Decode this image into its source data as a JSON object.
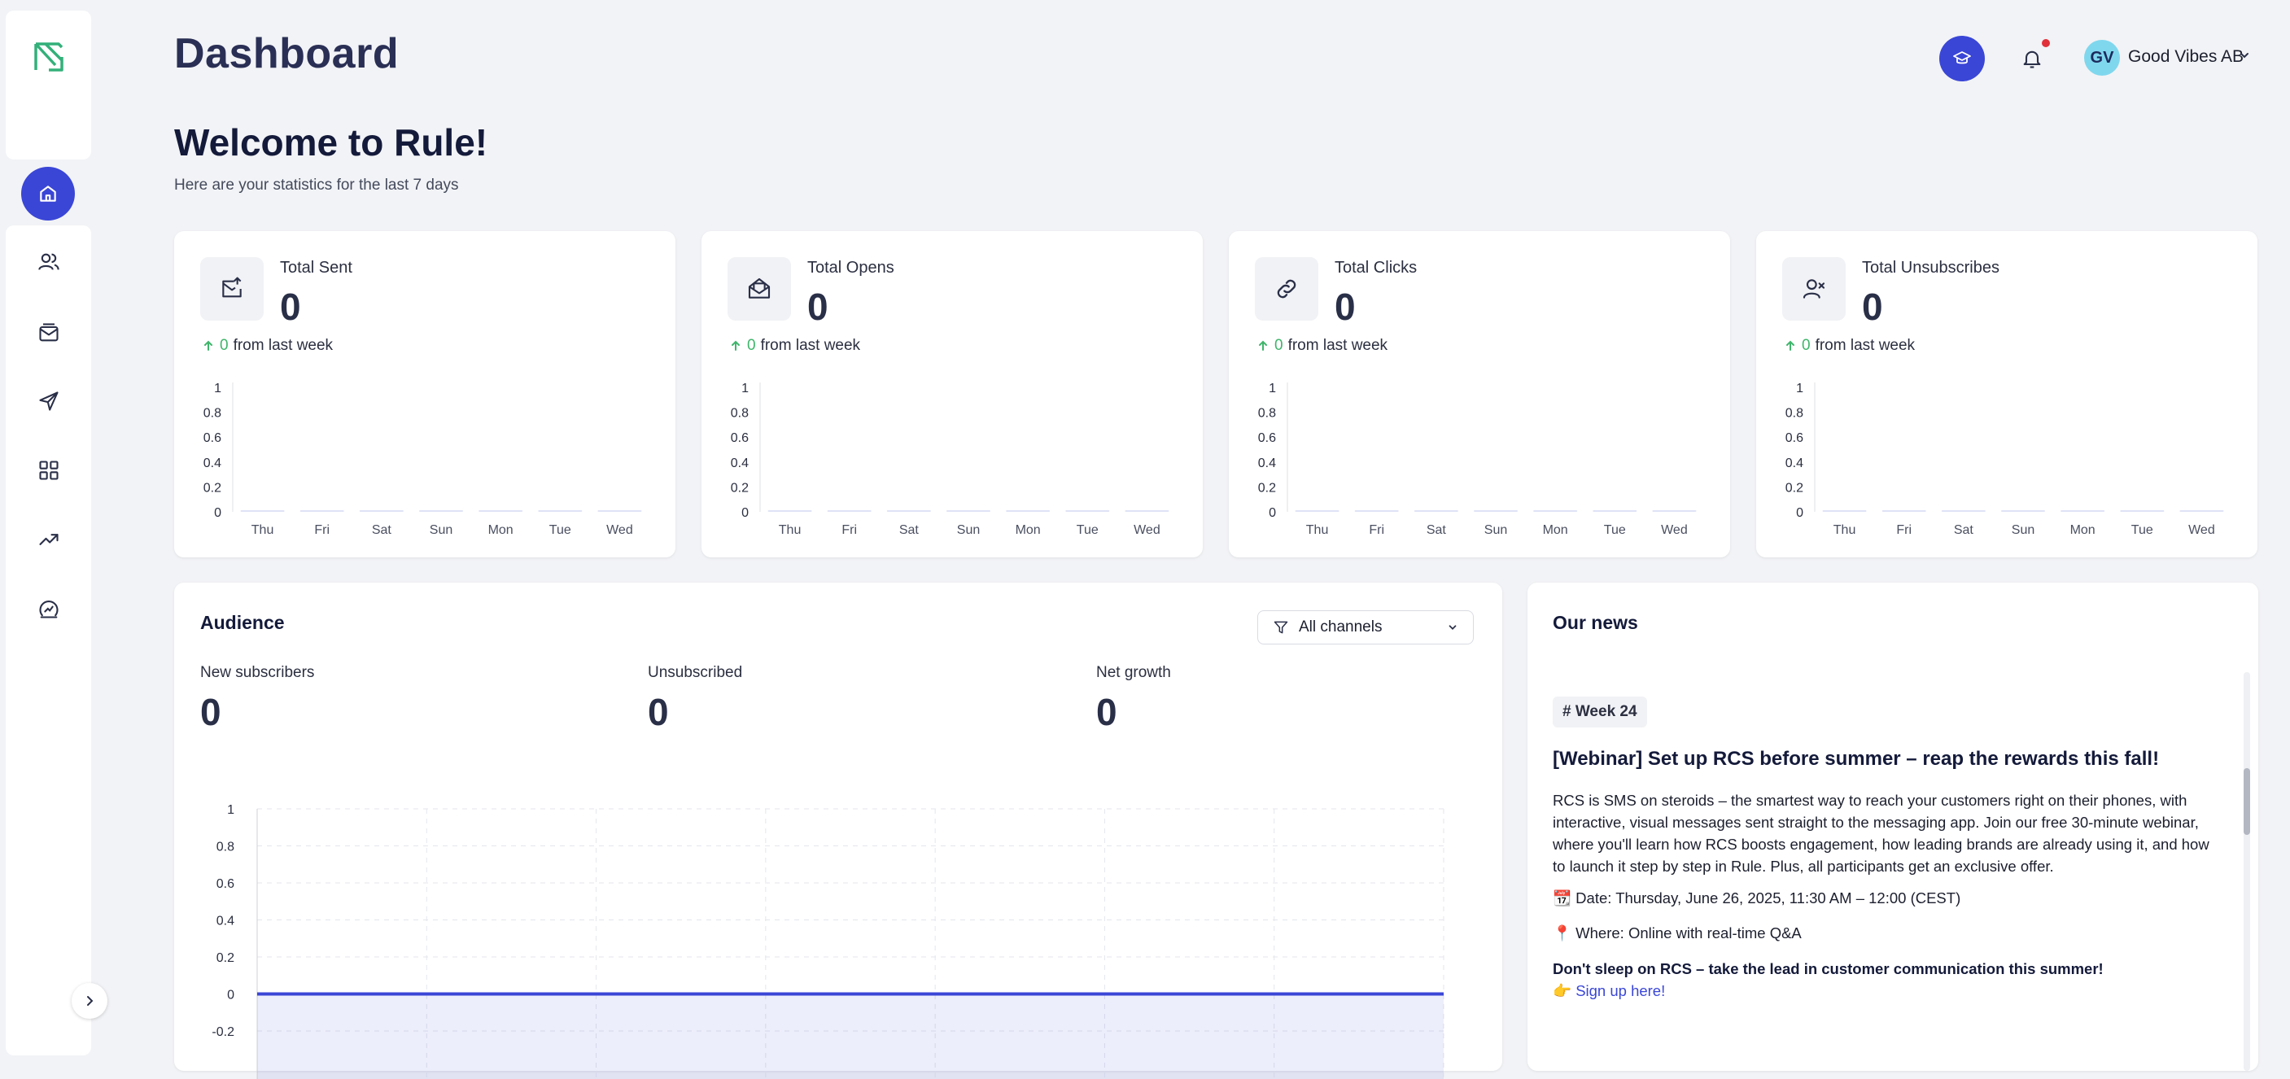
{
  "header": {
    "page_title": "Dashboard",
    "org_initials": "GV",
    "org_name": "Good Vibes AB"
  },
  "welcome": {
    "title": "Welcome to Rule!",
    "subtitle": "Here are your statistics for the last 7 days"
  },
  "sidebar": {
    "items": [
      {
        "icon": "home-icon",
        "active": true
      },
      {
        "icon": "users-icon"
      },
      {
        "icon": "mail-icon"
      },
      {
        "icon": "send-icon"
      },
      {
        "icon": "grid-icon"
      },
      {
        "icon": "trending-up-icon"
      },
      {
        "icon": "analytics-icon"
      }
    ]
  },
  "stats": [
    {
      "label": "Total Sent",
      "value": "0",
      "delta": "0",
      "delta_suffix": "from last week",
      "icon": "mail-send-icon"
    },
    {
      "label": "Total Opens",
      "value": "0",
      "delta": "0",
      "delta_suffix": "from last week",
      "icon": "mail-open-icon"
    },
    {
      "label": "Total Clicks",
      "value": "0",
      "delta": "0",
      "delta_suffix": "from last week",
      "icon": "link-icon"
    },
    {
      "label": "Total Unsubscribes",
      "value": "0",
      "delta": "0",
      "delta_suffix": "from last week",
      "icon": "user-remove-icon"
    }
  ],
  "audience": {
    "title": "Audience",
    "filter_label": "All channels",
    "metrics": [
      {
        "label": "New subscribers",
        "value": "0"
      },
      {
        "label": "Unsubscribed",
        "value": "0"
      },
      {
        "label": "Net growth",
        "value": "0"
      }
    ]
  },
  "news": {
    "title": "Our news",
    "tag": "# Week 24",
    "headline": "[Webinar] Set up RCS before summer – reap the rewards this fall!",
    "body": "RCS is SMS on steroids – the smartest way to reach your customers right on their phones, with interactive, visual messages sent straight to the messaging app. Join our free 30-minute webinar, where you'll learn how RCS boosts engagement, how leading brands are already using it, and how to launch it step by step in Rule. Plus, all participants get an exclusive offer.",
    "date_line": "📆 Date: Thursday, June 26, 2025, 11:30 AM – 12:00 (CEST)",
    "where_line": "📍 Where: Online with real-time Q&A",
    "cta_bold": "Don't sleep on RCS – take the lead in customer communication this summer!",
    "cta_prefix": "👉 ",
    "cta_link": "Sign up here!"
  },
  "chart_data": [
    {
      "type": "bar",
      "title": "Total Sent",
      "categories": [
        "Thu",
        "Fri",
        "Sat",
        "Sun",
        "Mon",
        "Tue",
        "Wed"
      ],
      "values": [
        0,
        0,
        0,
        0,
        0,
        0,
        0
      ],
      "yticks": [
        "0",
        "0.2",
        "0.4",
        "0.6",
        "0.8",
        "1"
      ],
      "ylim": [
        0,
        1
      ]
    },
    {
      "type": "bar",
      "title": "Total Opens",
      "categories": [
        "Thu",
        "Fri",
        "Sat",
        "Sun",
        "Mon",
        "Tue",
        "Wed"
      ],
      "values": [
        0,
        0,
        0,
        0,
        0,
        0,
        0
      ],
      "yticks": [
        "0",
        "0.2",
        "0.4",
        "0.6",
        "0.8",
        "1"
      ],
      "ylim": [
        0,
        1
      ]
    },
    {
      "type": "bar",
      "title": "Total Clicks",
      "categories": [
        "Thu",
        "Fri",
        "Sat",
        "Sun",
        "Mon",
        "Tue",
        "Wed"
      ],
      "values": [
        0,
        0,
        0,
        0,
        0,
        0,
        0
      ],
      "yticks": [
        "0",
        "0.2",
        "0.4",
        "0.6",
        "0.8",
        "1"
      ],
      "ylim": [
        0,
        1
      ]
    },
    {
      "type": "bar",
      "title": "Total Unsubscribes",
      "categories": [
        "Thu",
        "Fri",
        "Sat",
        "Sun",
        "Mon",
        "Tue",
        "Wed"
      ],
      "values": [
        0,
        0,
        0,
        0,
        0,
        0,
        0
      ],
      "yticks": [
        "0",
        "0.2",
        "0.4",
        "0.6",
        "0.8",
        "1"
      ],
      "ylim": [
        0,
        1
      ]
    },
    {
      "type": "area",
      "title": "Audience",
      "yticks": [
        "1",
        "0.8",
        "0.6",
        "0.4",
        "0.2",
        "0",
        "-0.2"
      ],
      "ylim": [
        -0.2,
        1
      ],
      "grid": true,
      "series": [
        {
          "values": [
            0,
            0
          ]
        }
      ],
      "color": "#3a46d6"
    }
  ]
}
